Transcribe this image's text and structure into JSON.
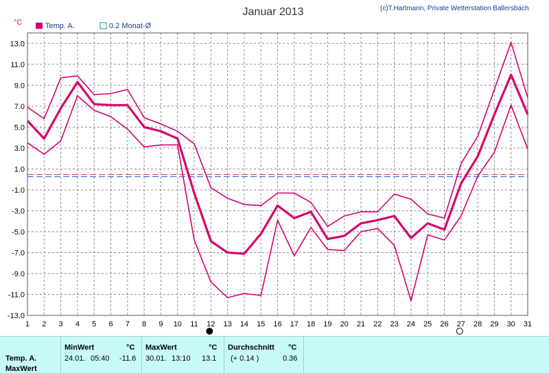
{
  "header": {
    "title": "Januar 2013",
    "credit": "(c)T.Hartmann, Private Wetterstation Ballersbach",
    "unit": "°C"
  },
  "legend": {
    "temp_label": "Temp. A.",
    "avg_label": "0.2 Monat-Ø"
  },
  "colors": {
    "series": "#d6006f",
    "avg_line_red": "#e03030",
    "avg_line_blue": "#3050d0",
    "grid": "#8a8a8a",
    "panel_bg": "#c8faf8"
  },
  "chart_data": {
    "type": "line",
    "title": "Januar 2013",
    "xlabel": "",
    "ylabel": "°C",
    "x": [
      1,
      2,
      3,
      4,
      5,
      6,
      7,
      8,
      9,
      10,
      11,
      12,
      13,
      14,
      15,
      16,
      17,
      18,
      19,
      20,
      21,
      22,
      23,
      24,
      25,
      26,
      27,
      28,
      29,
      30,
      31
    ],
    "xlim": [
      1,
      31
    ],
    "ylim": [
      -13,
      14
    ],
    "y_ticks": [
      13,
      11,
      9,
      7,
      5,
      3,
      1,
      -1,
      -3,
      -5,
      -7,
      -9,
      -11,
      -13
    ],
    "y_tick_labels": [
      "13.0",
      "11.0",
      "9.0",
      "7.0",
      "5.0",
      "3.0",
      "1.0",
      "-1.0",
      "-3.0",
      "-5.0",
      "-7.0",
      "-9.0",
      "-11.0",
      "-13.0"
    ],
    "grid": true,
    "series": [
      {
        "role": "max",
        "values": [
          6.9,
          5.8,
          9.7,
          9.9,
          8.1,
          8.2,
          8.6,
          5.9,
          5.3,
          4.6,
          3.4,
          -0.8,
          -1.8,
          -2.4,
          -2.5,
          -1.3,
          -1.3,
          -2.2,
          -4.5,
          -3.5,
          -3.1,
          -3.1,
          -1.4,
          -1.9,
          -3.3,
          -3.7,
          1.5,
          4.1,
          8.6,
          13.1,
          7.8
        ],
        "width": 1.6
      },
      {
        "role": "mean",
        "values": [
          5.6,
          3.9,
          6.8,
          9.3,
          7.2,
          7.1,
          7.1,
          5.0,
          4.6,
          3.9,
          -1.3,
          -5.9,
          -7.0,
          -7.1,
          -5.2,
          -2.5,
          -3.7,
          -3.1,
          -5.7,
          -5.4,
          -4.2,
          -3.9,
          -3.5,
          -5.6,
          -4.2,
          -4.8,
          -0.4,
          2.2,
          6.2,
          10.0,
          6.2
        ],
        "width": 3.2
      },
      {
        "role": "min",
        "values": [
          3.5,
          2.4,
          3.7,
          8.0,
          6.6,
          6.0,
          4.8,
          3.1,
          3.3,
          3.3,
          -5.8,
          -9.8,
          -11.3,
          -10.9,
          -11.1,
          -3.9,
          -7.3,
          -4.6,
          -6.7,
          -6.8,
          -5.0,
          -4.7,
          -6.3,
          -11.6,
          -5.3,
          -5.8,
          -3.5,
          0.3,
          2.6,
          7.1,
          2.9
        ],
        "width": 1.6
      }
    ],
    "monthly_avg": 0.36,
    "markers": [
      {
        "x": 12,
        "symbol": "new-moon"
      },
      {
        "x": 27,
        "symbol": "full-moon"
      }
    ]
  },
  "stats": {
    "row_label_1": "Temp. A.",
    "row_label_2": "MaxWert",
    "min": {
      "header": "MinWert",
      "unit": "°C",
      "date": "24.01.",
      "time": "05:40",
      "value": "-11.6"
    },
    "max": {
      "header": "MaxWert",
      "unit": "°C",
      "date": "30.01.",
      "time": "13:10",
      "value": "13.1"
    },
    "avg": {
      "header": "Durchschnitt",
      "unit": "°C",
      "delta": "(+ 0.14 )",
      "value": "0.36"
    }
  }
}
